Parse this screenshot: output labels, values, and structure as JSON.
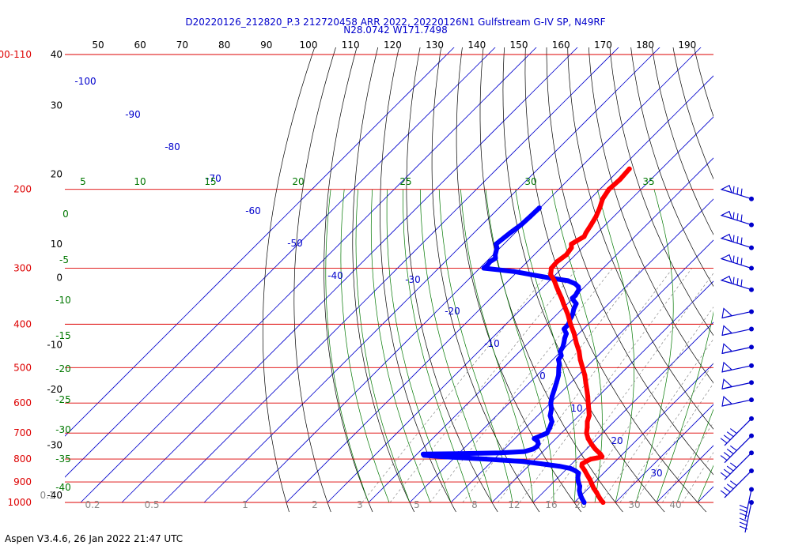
{
  "title_line1": "D20220126_212820_P.3 212720458 ARR 2022, 20220126N1 Gulfstream G-IV SP, N49RF",
  "title_line2": "N28.0742 W171.7498",
  "footer": "Aspen V3.4.6, 26 Jan 2022  21:47 UTC",
  "chart_data": {
    "type": "line",
    "plot": "skew-T log-p",
    "pressure_levels": [
      {
        "p": 100,
        "label": "100-110"
      },
      {
        "p": 200,
        "label": "200"
      },
      {
        "p": 300,
        "label": "300"
      },
      {
        "p": 400,
        "label": "400"
      },
      {
        "p": 500,
        "label": "500"
      },
      {
        "p": 600,
        "label": "600"
      },
      {
        "p": 700,
        "label": "700"
      },
      {
        "p": 800,
        "label": "800"
      },
      {
        "p": 900,
        "label": "900"
      },
      {
        "p": 1000,
        "label": "1000"
      }
    ],
    "height_labels": [
      {
        "p": 100,
        "label": "40"
      },
      {
        "p": 130,
        "label": "30"
      },
      {
        "p": 185,
        "label": "20"
      },
      {
        "p": 265,
        "label": "10"
      },
      {
        "p": 315,
        "label": "0"
      },
      {
        "p": 445,
        "label": "-10"
      },
      {
        "p": 560,
        "label": "-20"
      },
      {
        "p": 745,
        "label": "-30"
      },
      {
        "p": 965,
        "label": "-40"
      }
    ],
    "top_tick_labels": [
      "50",
      "60",
      "70",
      "80",
      "90",
      "100",
      "110",
      "120",
      "130",
      "140",
      "150",
      "160",
      "170",
      "180",
      "190"
    ],
    "isotherm_labels": [
      "-100",
      "-90",
      "-80",
      "-70",
      "-60",
      "-50",
      "-40",
      "-30",
      "-20",
      "-10",
      "0",
      "10",
      "20",
      "30"
    ],
    "dry_adiabat_labels": [
      "5",
      "10",
      "15",
      "20",
      "25",
      "30",
      "35",
      "0",
      "-5",
      "-10",
      "-15",
      "-20",
      "-25",
      "-30",
      "-35",
      "-40"
    ],
    "mixing_ratio_labels": [
      "0.1",
      "0.2",
      "0.5",
      "1",
      "2",
      "3",
      "5",
      "8",
      "12",
      "16",
      "20",
      "30",
      "40"
    ],
    "temperature": {
      "name": "Temperature",
      "color": "#ff0000",
      "points": [
        [
          180,
          -57.8
        ],
        [
          190,
          -57.5
        ],
        [
          200,
          -57.8
        ],
        [
          210,
          -57.0
        ],
        [
          220,
          -55.5
        ],
        [
          230,
          -54.3
        ],
        [
          240,
          -53.5
        ],
        [
          250,
          -52.8
        ],
        [
          255,
          -52.3
        ],
        [
          260,
          -53.0
        ],
        [
          265,
          -53.6
        ],
        [
          270,
          -52.7
        ],
        [
          280,
          -52.2
        ],
        [
          290,
          -52.8
        ],
        [
          300,
          -52.6
        ],
        [
          310,
          -51.2
        ],
        [
          320,
          -48.8
        ],
        [
          330,
          -46.8
        ],
        [
          340,
          -44.8
        ],
        [
          350,
          -42.8
        ],
        [
          360,
          -41.0
        ],
        [
          380,
          -37.4
        ],
        [
          400,
          -34.3
        ],
        [
          420,
          -31.1
        ],
        [
          440,
          -28.4
        ],
        [
          460,
          -25.6
        ],
        [
          480,
          -23.3
        ],
        [
          500,
          -20.8
        ],
        [
          520,
          -18.4
        ],
        [
          540,
          -16.4
        ],
        [
          560,
          -14.4
        ],
        [
          580,
          -12.5
        ],
        [
          600,
          -10.8
        ],
        [
          620,
          -9.1
        ],
        [
          640,
          -7.5
        ],
        [
          660,
          -6.5
        ],
        [
          680,
          -5.1
        ],
        [
          700,
          -3.9
        ],
        [
          720,
          -2.2
        ],
        [
          740,
          -0.1
        ],
        [
          760,
          2.1
        ],
        [
          780,
          4.6
        ],
        [
          790,
          5.6
        ],
        [
          795,
          4.8
        ],
        [
          800,
          3.5
        ],
        [
          810,
          2.9
        ],
        [
          820,
          2.5
        ],
        [
          830,
          3.0
        ],
        [
          850,
          4.9
        ],
        [
          870,
          6.6
        ],
        [
          890,
          8.3
        ],
        [
          910,
          9.8
        ],
        [
          930,
          11.3
        ],
        [
          950,
          13.0
        ],
        [
          970,
          14.5
        ],
        [
          990,
          16.1
        ],
        [
          1000,
          17.0
        ]
      ]
    },
    "dewpoint": {
      "name": "Dewpoint",
      "color": "#0000ff",
      "points": [
        [
          220,
          -70.2
        ],
        [
          230,
          -70.3
        ],
        [
          240,
          -70.5
        ],
        [
          250,
          -71.2
        ],
        [
          260,
          -71.7
        ],
        [
          265,
          -71.9
        ],
        [
          270,
          -70.8
        ],
        [
          280,
          -69.5
        ],
        [
          285,
          -68.6
        ],
        [
          290,
          -69.1
        ],
        [
          295,
          -68.9
        ],
        [
          300,
          -69.0
        ],
        [
          305,
          -61.0
        ],
        [
          310,
          -56.0
        ],
        [
          315,
          -51.0
        ],
        [
          320,
          -45.5
        ],
        [
          325,
          -43.0
        ],
        [
          330,
          -41.5
        ],
        [
          335,
          -40.7
        ],
        [
          340,
          -40.4
        ],
        [
          345,
          -40.1
        ],
        [
          350,
          -40.2
        ],
        [
          355,
          -39.1
        ],
        [
          360,
          -37.9
        ],
        [
          370,
          -37.2
        ],
        [
          380,
          -36.2
        ],
        [
          390,
          -35.6
        ],
        [
          400,
          -34.8
        ],
        [
          410,
          -34.7
        ],
        [
          420,
          -33.0
        ],
        [
          430,
          -32.3
        ],
        [
          440,
          -31.4
        ],
        [
          450,
          -30.6
        ],
        [
          460,
          -30.2
        ],
        [
          470,
          -28.9
        ],
        [
          480,
          -28.6
        ],
        [
          490,
          -27.4
        ],
        [
          500,
          -26.6
        ],
        [
          520,
          -24.8
        ],
        [
          540,
          -23.5
        ],
        [
          560,
          -22.3
        ],
        [
          580,
          -21.2
        ],
        [
          600,
          -19.9
        ],
        [
          620,
          -18.2
        ],
        [
          640,
          -17.0
        ],
        [
          660,
          -15.1
        ],
        [
          680,
          -14.2
        ],
        [
          700,
          -13.5
        ],
        [
          720,
          -15.3
        ],
        [
          730,
          -13.8
        ],
        [
          740,
          -13.0
        ],
        [
          750,
          -12.7
        ],
        [
          760,
          -13.0
        ],
        [
          770,
          -14.5
        ],
        [
          775,
          -20.0
        ],
        [
          778,
          -30.0
        ],
        [
          780,
          -38.5
        ],
        [
          785,
          -38.0
        ],
        [
          790,
          -33.5
        ],
        [
          795,
          -28.0
        ],
        [
          800,
          -22.0
        ],
        [
          805,
          -17.5
        ],
        [
          810,
          -12.5
        ],
        [
          820,
          -7.4
        ],
        [
          830,
          -2.5
        ],
        [
          840,
          0.9
        ],
        [
          850,
          2.6
        ],
        [
          860,
          3.9
        ],
        [
          880,
          4.8
        ],
        [
          900,
          6.0
        ],
        [
          920,
          7.4
        ],
        [
          940,
          8.3
        ],
        [
          960,
          9.5
        ],
        [
          980,
          10.9
        ],
        [
          1000,
          12.4
        ]
      ]
    },
    "wind_barbs": [
      {
        "p": 210,
        "icon": "wind-barb-icon"
      },
      {
        "p": 240,
        "icon": "wind-barb-icon"
      },
      {
        "p": 270,
        "icon": "wind-barb-icon"
      },
      {
        "p": 300,
        "icon": "wind-barb-icon"
      },
      {
        "p": 335,
        "icon": "wind-barb-icon"
      },
      {
        "p": 375,
        "icon": "wind-barb-icon"
      },
      {
        "p": 410,
        "icon": "wind-barb-icon"
      },
      {
        "p": 450,
        "icon": "wind-barb-icon"
      },
      {
        "p": 495,
        "icon": "wind-barb-icon"
      },
      {
        "p": 540,
        "icon": "wind-barb-icon"
      },
      {
        "p": 590,
        "icon": "wind-barb-icon"
      },
      {
        "p": 650,
        "icon": "wind-barb-icon"
      },
      {
        "p": 710,
        "icon": "wind-barb-icon"
      },
      {
        "p": 775,
        "icon": "wind-barb-icon"
      },
      {
        "p": 850,
        "icon": "wind-barb-icon"
      },
      {
        "p": 935,
        "icon": "wind-barb-icon"
      },
      {
        "p": 1000,
        "icon": "wind-barb-icon"
      }
    ],
    "grid": true
  }
}
